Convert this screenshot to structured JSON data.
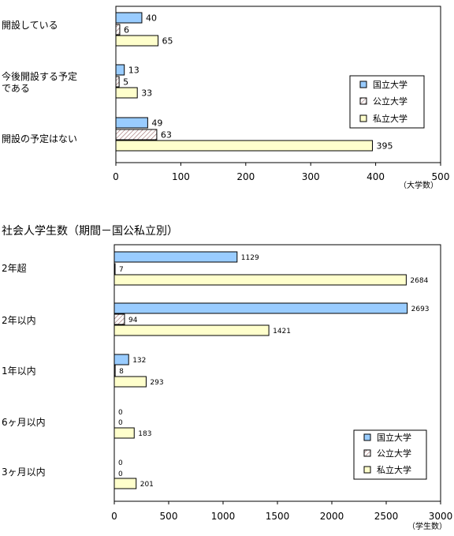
{
  "colors": {
    "national": "#99ccff",
    "public": "#ffffff",
    "public_hatch": "#996666",
    "private": "#ffffcc",
    "border": "#000000"
  },
  "chart_data": [
    {
      "type": "bar",
      "orientation": "horizontal",
      "title": "",
      "xlabel": "",
      "unit_label": "（大学数）",
      "xlim": [
        0,
        500
      ],
      "xticks": [
        0,
        100,
        200,
        300,
        400,
        500
      ],
      "grid": false,
      "legend_position": "right",
      "categories": [
        "開設している",
        "今後開設する予定である",
        "開設の予定はない"
      ],
      "category_lines": [
        [
          "開設している"
        ],
        [
          "今後開設する予定",
          "である"
        ],
        [
          "開設の予定はない"
        ]
      ],
      "series": [
        {
          "name": "国立大学",
          "values": [
            40,
            13,
            49
          ]
        },
        {
          "name": "公立大学",
          "values": [
            6,
            5,
            63
          ]
        },
        {
          "name": "私立大学",
          "values": [
            65,
            33,
            395
          ]
        }
      ]
    },
    {
      "type": "bar",
      "orientation": "horizontal",
      "title": "社会人学生数（期間－国公私立別）",
      "xlabel": "",
      "unit_label": "（学生数）",
      "xlim": [
        0,
        3000
      ],
      "xticks": [
        0,
        500,
        1000,
        1500,
        2000,
        2500,
        3000
      ],
      "grid": false,
      "legend_position": "bottom-right",
      "categories": [
        "2年超",
        "2年以内",
        "1年以内",
        "6ヶ月以内",
        "3ヶ月以内"
      ],
      "category_lines": [
        [
          "2年超"
        ],
        [
          "2年以内"
        ],
        [
          "1年以内"
        ],
        [
          "6ヶ月以内"
        ],
        [
          "3ヶ月以内"
        ]
      ],
      "series": [
        {
          "name": "国立大学",
          "values": [
            1129,
            2693,
            132,
            0,
            0
          ]
        },
        {
          "name": "公立大学",
          "values": [
            7,
            94,
            8,
            0,
            0
          ]
        },
        {
          "name": "私立大学",
          "values": [
            2684,
            1421,
            293,
            183,
            201
          ]
        }
      ]
    }
  ]
}
